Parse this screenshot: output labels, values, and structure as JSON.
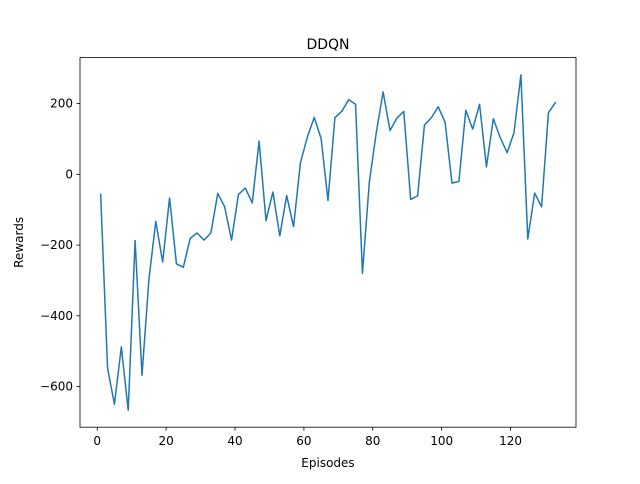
{
  "chart_data": {
    "type": "line",
    "title": "DDQN",
    "xlabel": "Episodes",
    "ylabel": "Rewards",
    "xlim": [
      -5,
      139
    ],
    "ylim": [
      -715,
      330
    ],
    "xticks": [
      0,
      20,
      40,
      60,
      80,
      100,
      120
    ],
    "yticks": [
      -600,
      -400,
      -200,
      0,
      200
    ],
    "grid": false,
    "legend": null,
    "line_color": "#1f77b4",
    "series": [
      {
        "x": [
          1,
          3,
          5,
          7,
          9,
          11,
          13,
          15,
          17,
          19,
          21,
          23,
          25,
          27,
          29,
          31,
          33,
          35,
          37,
          39,
          41,
          43,
          45,
          47,
          49,
          51,
          53,
          55,
          57,
          59,
          61,
          63,
          65,
          67,
          69,
          71,
          73,
          75,
          77,
          79,
          81,
          83,
          85,
          87,
          89,
          91,
          93,
          95,
          97,
          99,
          101,
          103,
          105,
          107,
          109,
          111,
          113,
          115,
          117,
          119,
          121,
          123,
          125,
          127,
          129,
          131,
          133
        ],
        "values": [
          -57,
          -548,
          -650,
          -488,
          -667,
          -187,
          -568,
          -298,
          -133,
          -248,
          -67,
          -253,
          -263,
          -181,
          -166,
          -186,
          -166,
          -54,
          -92,
          -186,
          -57,
          -39,
          -81,
          94,
          -131,
          -50,
          -174,
          -60,
          -148,
          33,
          105,
          161,
          101,
          -74,
          160,
          178,
          211,
          198,
          -280,
          -22,
          117,
          233,
          124,
          159,
          178,
          -71,
          -61,
          139,
          160,
          191,
          147,
          -25,
          -20,
          181,
          128,
          198,
          21,
          157,
          104,
          61,
          118,
          281,
          -183,
          -53,
          -92,
          174,
          203
        ]
      }
    ]
  }
}
